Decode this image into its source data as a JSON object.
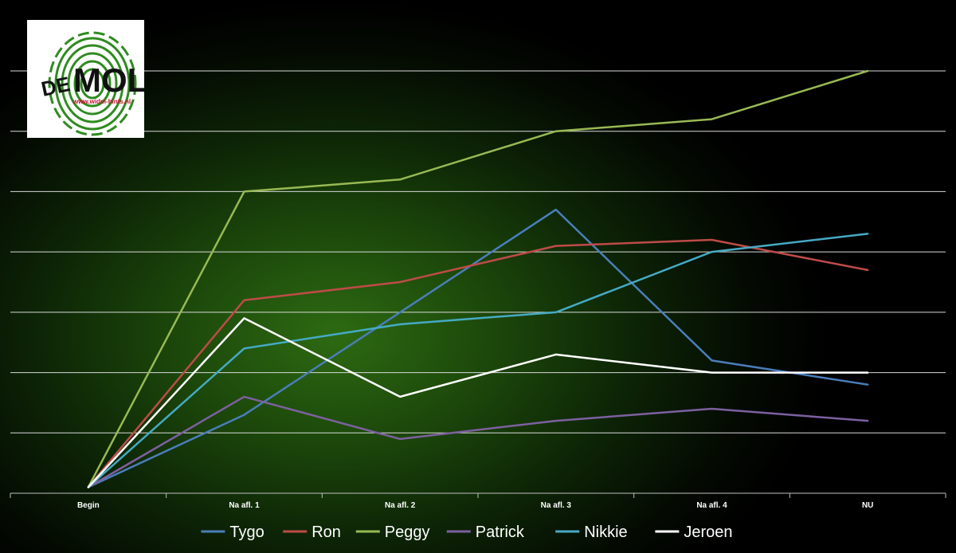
{
  "logo": {
    "name": "De Mol",
    "url_text": "www.widm-hints.nl",
    "icon": "fingerprint-icon"
  },
  "colors": {
    "background": "#000000",
    "gridline": "#d9d9d9",
    "text": "#ffffff"
  },
  "chart_data": {
    "type": "line",
    "title": "",
    "xlabel": "",
    "ylabel": "",
    "categories": [
      "Begin",
      "Na afl. 1",
      "Na afl. 2",
      "Na afl. 3",
      "Na afl. 4",
      "NU"
    ],
    "ylim": [
      0,
      7
    ],
    "y_axis_visible": false,
    "grid": true,
    "legend": "bottom",
    "series": [
      {
        "name": "Tygo",
        "color": "#4a7ebb",
        "values": [
          0.1,
          1.3,
          3.0,
          4.7,
          2.2,
          1.8
        ]
      },
      {
        "name": "Ron",
        "color": "#be4b48",
        "values": [
          0.1,
          3.2,
          3.5,
          4.1,
          4.2,
          3.7
        ]
      },
      {
        "name": "Peggy",
        "color": "#98b954",
        "values": [
          0.1,
          5.0,
          5.2,
          6.0,
          6.2,
          7.0
        ]
      },
      {
        "name": "Patrick",
        "color": "#7d60a0",
        "values": [
          0.1,
          1.6,
          0.9,
          1.2,
          1.4,
          1.2
        ]
      },
      {
        "name": "Nikkie",
        "color": "#46aac5",
        "values": [
          0.1,
          2.4,
          2.8,
          3.0,
          4.0,
          4.3
        ]
      },
      {
        "name": "Jeroen",
        "color": "#ffffff",
        "values": [
          0.1,
          2.9,
          1.6,
          2.3,
          2.0,
          2.0
        ]
      }
    ]
  }
}
